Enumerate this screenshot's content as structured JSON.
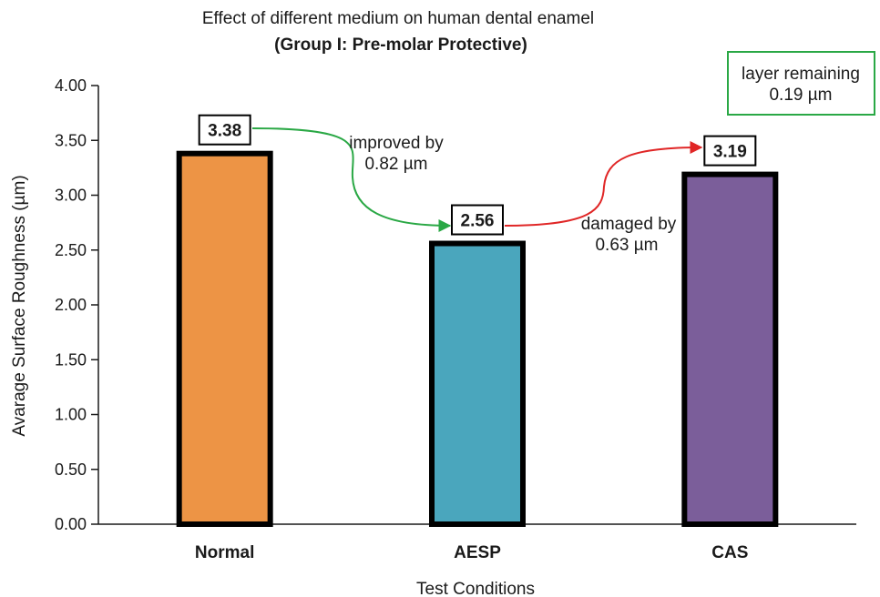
{
  "chart_data": {
    "type": "bar",
    "title": "Effect of different medium on human dental enamel",
    "subtitle": "(Group I: Pre-molar Protective)",
    "xlabel": "Test Conditions",
    "ylabel": "Avarage Surface Roughness (µm)",
    "ylim": [
      0,
      4
    ],
    "yticks": [
      "0.00",
      "0.50",
      "1.00",
      "1.50",
      "2.00",
      "2.50",
      "3.00",
      "3.50",
      "4.00"
    ],
    "grid": false,
    "legend": "none",
    "categories": [
      "Normal",
      "AESP",
      "CAS"
    ],
    "values": [
      3.38,
      2.56,
      3.19
    ],
    "value_labels": [
      "3.38",
      "2.56",
      "3.19"
    ],
    "colors": [
      "#ed9445",
      "#4aa6bd",
      "#7b5e9a"
    ],
    "annotations": {
      "improved": {
        "line1": "improved by",
        "line2": "0.82 µm",
        "color": "#2aa845"
      },
      "damaged": {
        "line1": "damaged by",
        "line2": "0.63 µm",
        "color": "#e02626"
      },
      "remaining": {
        "line1": "layer remaining",
        "line2": "0.19 µm",
        "color": "#2aa845"
      }
    }
  }
}
